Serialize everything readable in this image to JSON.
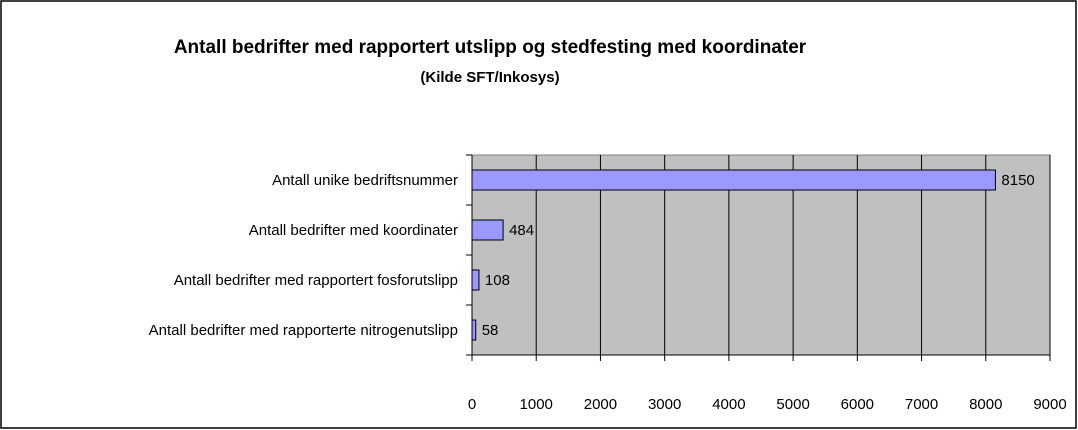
{
  "chart_data": {
    "type": "bar",
    "orientation": "horizontal",
    "title": "Antall bedrifter med rapportert utslipp og stedfesting med koordinater",
    "subtitle": "(Kilde SFT/Inkosys)",
    "categories": [
      "Antall unike bedriftsnummer",
      "Antall bedrifter med koordinater",
      "Antall bedrifter med rapportert fosforutslipp",
      "Antall bedrifter med rapporterte nitrogenutslipp"
    ],
    "values": [
      8150,
      484,
      108,
      58
    ],
    "color": "#9999ff",
    "xlim": [
      0,
      9000
    ],
    "xticks": [
      0,
      1000,
      2000,
      3000,
      4000,
      5000,
      6000,
      7000,
      8000,
      9000
    ],
    "grid": true
  }
}
